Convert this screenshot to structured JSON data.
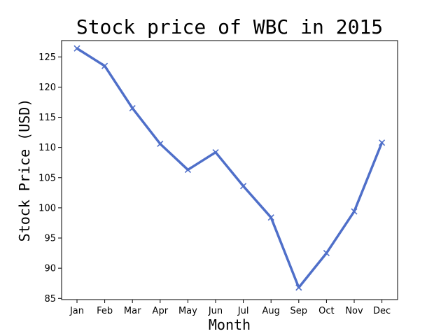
{
  "chart_data": {
    "type": "line",
    "title": "Stock price of WBC in 2015",
    "xlabel": "Month",
    "ylabel": "Stock Price (USD)",
    "categories": [
      "Jan",
      "Feb",
      "Mar",
      "Apr",
      "May",
      "Jun",
      "Jul",
      "Aug",
      "Sep",
      "Oct",
      "Nov",
      "Dec"
    ],
    "series": [
      {
        "values": [
          126.4,
          123.5,
          116.5,
          110.6,
          106.3,
          109.2,
          103.6,
          98.4,
          86.8,
          92.5,
          99.4,
          110.8
        ],
        "color": "#4f6fc9",
        "marker": "x"
      }
    ],
    "yticks": [
      85,
      90,
      95,
      100,
      105,
      110,
      115,
      120,
      125
    ],
    "ylim": [
      84.8,
      127.7
    ],
    "grid": false,
    "legend": "none"
  }
}
